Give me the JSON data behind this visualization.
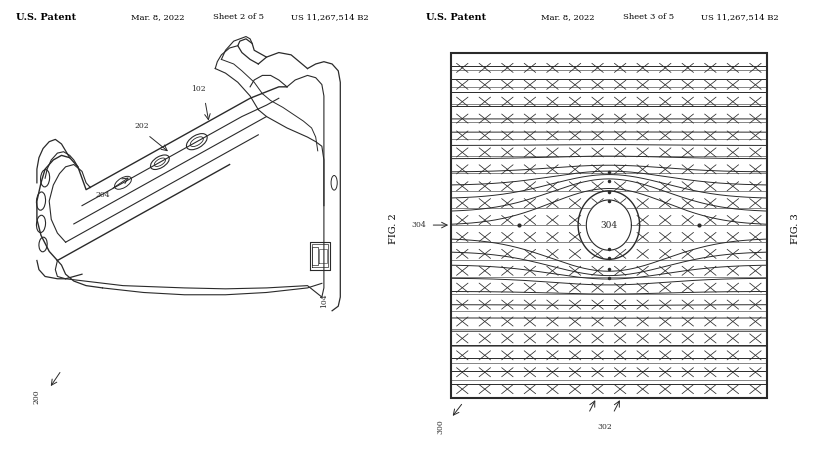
{
  "bg_color": "#ffffff",
  "line_color": "#2a2a2a",
  "header_left1": "U.S. Patent",
  "header_left2": "U.S. Patent",
  "header_date1": "Mar. 8, 2022",
  "header_date2": "Mar. 8, 2022",
  "header_sheet1": "Sheet 2 of 5",
  "header_sheet2": "Sheet 3 of 5",
  "header_patent1": "US 11,267,514 B2",
  "header_patent2": "US 11,267,514 B2",
  "fig_label1": "FIG. 2",
  "fig_label2": "FIG. 3"
}
